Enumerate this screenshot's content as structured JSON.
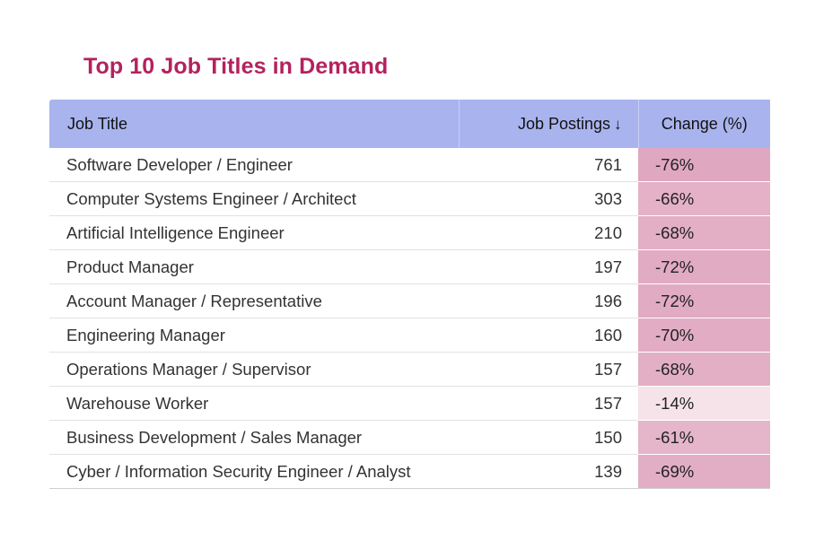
{
  "title": "Top 10 Job Titles in Demand",
  "columns": {
    "job_title": "Job Title",
    "job_postings": "Job Postings",
    "sort_arrow": "↓",
    "change": "Change (%)"
  },
  "rows": [
    {
      "title": "Software Developer / Engineer",
      "postings": "761",
      "change": "-76%"
    },
    {
      "title": "Computer Systems Engineer / Architect",
      "postings": "303",
      "change": "-66%"
    },
    {
      "title": "Artificial Intelligence Engineer",
      "postings": "210",
      "change": "-68%"
    },
    {
      "title": "Product Manager",
      "postings": "197",
      "change": "-72%"
    },
    {
      "title": "Account Manager / Representative",
      "postings": "196",
      "change": "-72%"
    },
    {
      "title": "Engineering Manager",
      "postings": "160",
      "change": "-70%"
    },
    {
      "title": "Operations Manager / Supervisor",
      "postings": "157",
      "change": "-68%"
    },
    {
      "title": "Warehouse Worker",
      "postings": "157",
      "change": "-14%"
    },
    {
      "title": "Business Development / Sales Manager",
      "postings": "150",
      "change": "-61%"
    },
    {
      "title": "Cyber / Information Security Engineer / Analyst",
      "postings": "139",
      "change": "-69%"
    }
  ],
  "colors": {
    "title": "#b3225e",
    "header_bg": "#a9b4ee",
    "change_heat_strong": "#e0a7c0",
    "change_heat_weak": "#fbf0f4"
  },
  "chart_data": {
    "type": "table",
    "title": "Top 10 Job Titles in Demand",
    "columns": [
      "Job Title",
      "Job Postings",
      "Change (%)"
    ],
    "sorted_by": "Job Postings (descending)",
    "categories": [
      "Software Developer / Engineer",
      "Computer Systems Engineer / Architect",
      "Artificial Intelligence Engineer",
      "Product Manager",
      "Account Manager / Representative",
      "Engineering Manager",
      "Operations Manager / Supervisor",
      "Warehouse Worker",
      "Business Development / Sales Manager",
      "Cyber / Information Security Engineer / Analyst"
    ],
    "series": [
      {
        "name": "Job Postings",
        "values": [
          761,
          303,
          210,
          197,
          196,
          160,
          157,
          157,
          150,
          139
        ]
      },
      {
        "name": "Change (%)",
        "values": [
          -76,
          -66,
          -68,
          -72,
          -72,
          -70,
          -68,
          -14,
          -61,
          -69
        ]
      }
    ]
  }
}
